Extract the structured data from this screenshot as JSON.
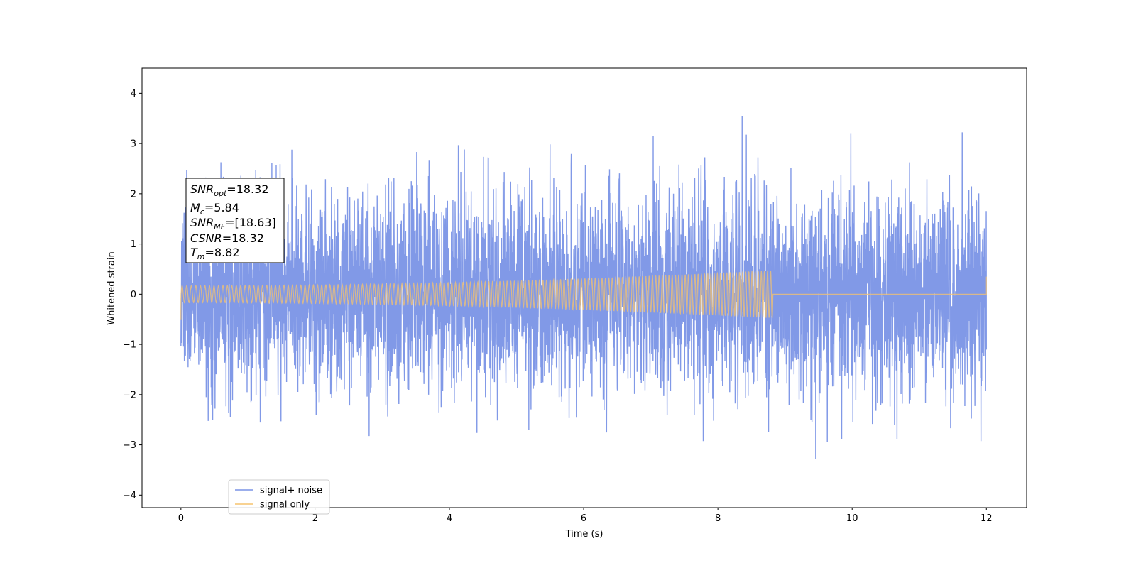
{
  "chart_data": {
    "type": "line",
    "title": "",
    "xlabel": "Time (s)",
    "ylabel": "Whitened strain",
    "xlim": [
      -0.58,
      12.6
    ],
    "ylim": [
      -4.25,
      4.5
    ],
    "xticks": [
      0,
      2,
      4,
      6,
      8,
      10,
      12
    ],
    "yticks": [
      -4,
      -3,
      -2,
      -1,
      0,
      1,
      2,
      3,
      4
    ],
    "xtick_labels": [
      "0",
      "2",
      "4",
      "6",
      "8",
      "10",
      "12"
    ],
    "ytick_labels": [
      "−4",
      "−3",
      "−2",
      "−1",
      "0",
      "1",
      "2",
      "3",
      "4"
    ],
    "grid": false,
    "legend_position": "lower-left",
    "series": [
      {
        "name": "signal+ noise",
        "color": "#7a94e6",
        "kind": "gaussian noise plus signal",
        "x_range": [
          0,
          12
        ],
        "noise_std": 1.0,
        "max_value": 4.15,
        "min_value": -3.83
      },
      {
        "name": "signal only",
        "color": "#f5c36e",
        "kind": "chirp",
        "x_range": [
          0,
          12
        ],
        "chirp_end": 8.82,
        "amplitude_start": 0.17,
        "amplitude_end": 0.48,
        "cycles": 160,
        "end_spike": 0.35
      }
    ],
    "annotation": {
      "lines": [
        {
          "base": "SNR",
          "sub": "opt",
          "value": "=18.32"
        },
        {
          "base": "M",
          "sub": "c",
          "value": "=5.84"
        },
        {
          "base": "SNR",
          "sub": "MF",
          "value": "=[18.63]"
        },
        {
          "base": "CSNR",
          "sub": "",
          "value": "=18.32"
        },
        {
          "base": "T",
          "sub": "m",
          "value": "=8.82"
        }
      ]
    }
  }
}
